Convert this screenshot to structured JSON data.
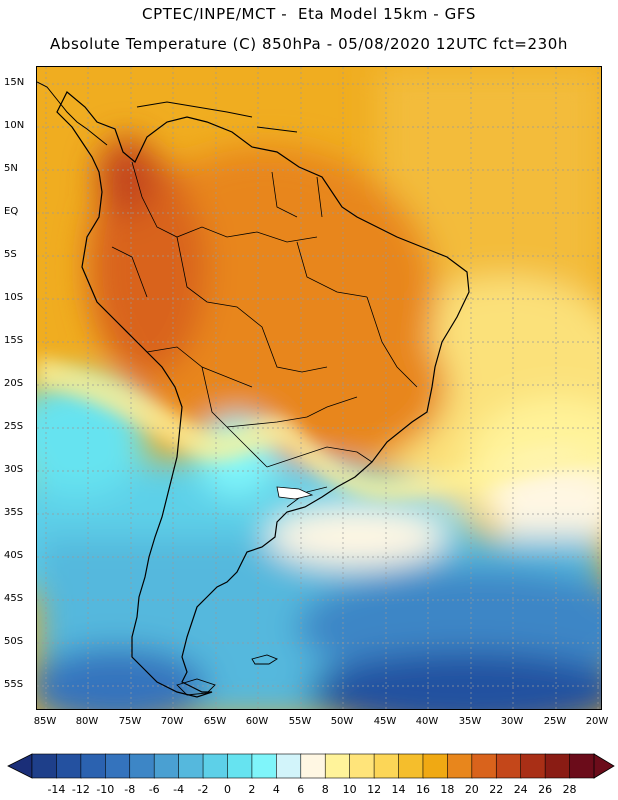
{
  "header": {
    "line1": "CPTEC/INPE/MCT -  Eta Model 15km - GFS",
    "line2": "Absolute Temperature (C) 850hPa - 05/08/2020 12UTC fct=230h"
  },
  "map": {
    "lat_labels": [
      "15N",
      "10N",
      "5N",
      "EQ",
      "5S",
      "10S",
      "15S",
      "20S",
      "25S",
      "30S",
      "35S",
      "40S",
      "45S",
      "50S",
      "55S"
    ],
    "lon_labels": [
      "85W",
      "80W",
      "75W",
      "70W",
      "65W",
      "60W",
      "55W",
      "50W",
      "45W",
      "40W",
      "35W",
      "30W",
      "25W",
      "20W"
    ],
    "region": "South America",
    "variable": "Absolute Temperature (C) 850hPa"
  },
  "colorbar": {
    "labels": [
      "-14",
      "-12",
      "-10",
      "-8",
      "-6",
      "-4",
      "-2",
      "0",
      "2",
      "4",
      "6",
      "8",
      "10",
      "12",
      "14",
      "16",
      "18",
      "20",
      "22",
      "24",
      "26",
      "28"
    ],
    "colors": [
      "#1e3f8a",
      "#2451a0",
      "#2b62b0",
      "#3473bd",
      "#3d86c6",
      "#4aa0d2",
      "#55b8dd",
      "#5dd0e8",
      "#66e3f0",
      "#7ff5fa",
      "#d2f4fa",
      "#fff7e3",
      "#fff39a",
      "#ffe47a",
      "#fcd657",
      "#f5be2c",
      "#f0a913",
      "#e8861c",
      "#d9631c",
      "#c4471a",
      "#a92f16",
      "#8a1c14",
      "#6b0c1a"
    ]
  }
}
